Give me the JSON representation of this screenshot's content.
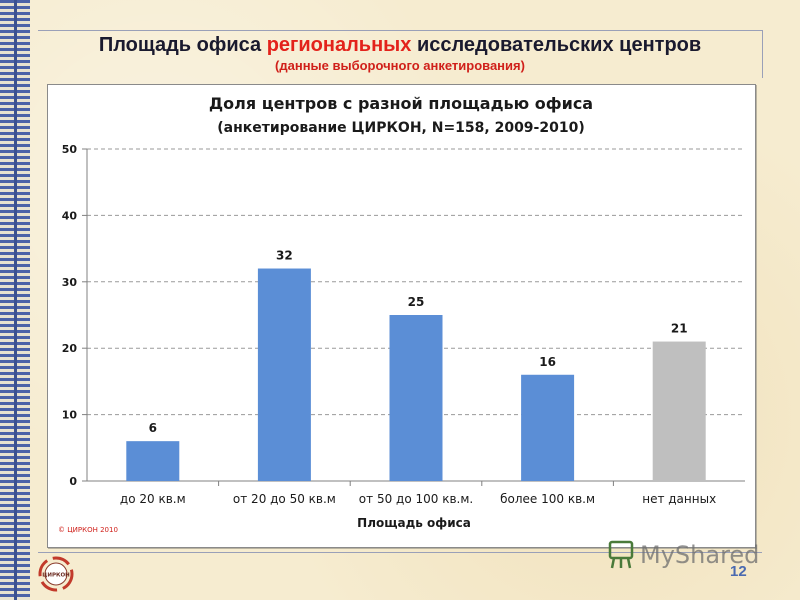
{
  "header": {
    "title_pre": "Площадь офиса ",
    "title_highlight": "региональных",
    "title_post": " исследовательских центров",
    "subtitle": "(данные выборочного анкетирования)"
  },
  "footer": {
    "page_number": "12",
    "logo_text": "ЦИРКОН",
    "watermark_text": "MyShared"
  },
  "colors": {
    "bar_blue": "#5b8ed6",
    "bar_gray": "#bfbfbf",
    "highlight_red": "#e3221b",
    "strip_blue": "#4c62a8"
  },
  "chart_data": {
    "type": "bar",
    "title": "Доля центров с разной площадью офиса",
    "subtitle": "(анкетирование ЦИРКОН, N=158, 2009-2010)",
    "xlabel": "Площадь офиса",
    "ylabel": "",
    "categories": [
      "до 20 кв.м",
      "от 20 до 50 кв.м",
      "от 50 до 100 кв.м.",
      "более 100 кв.м",
      "нет данных"
    ],
    "values": [
      6,
      32,
      25,
      16,
      21
    ],
    "data_labels": [
      "6",
      "32",
      "25",
      "16",
      "21"
    ],
    "bar_colors": [
      "#5b8ed6",
      "#5b8ed6",
      "#5b8ed6",
      "#5b8ed6",
      "#bfbfbf"
    ],
    "ylim": [
      0,
      50
    ],
    "yticks": [
      0,
      10,
      20,
      30,
      40,
      50
    ],
    "grid": true,
    "copyright": "© ЦИРКОН 2010"
  }
}
